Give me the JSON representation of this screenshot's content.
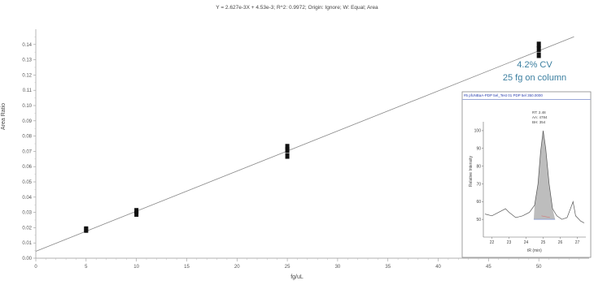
{
  "chart_data": {
    "type": "scatter",
    "title": "Y = 2.627e-3X + 4.53e-3; R^2: 0.9972; Origin: Ignore; W: Equal; Area",
    "xlabel": "fg/uL",
    "ylabel": "Area Ratio",
    "xlim": [
      0,
      55
    ],
    "ylim": [
      0,
      0.15
    ],
    "x_ticks": [
      "0",
      "5",
      "10",
      "15",
      "20",
      "25",
      "30",
      "35",
      "40",
      "45",
      "50"
    ],
    "y_ticks": [
      "0.00",
      "0.01",
      "0.02",
      "0.03",
      "0.04",
      "0.05",
      "0.06",
      "0.07",
      "0.08",
      "0.09",
      "0.10",
      "0.11",
      "0.12",
      "0.13",
      "0.14"
    ],
    "fit": {
      "slope": 0.002627,
      "intercept": 0.00453
    },
    "points": [
      {
        "x": 5,
        "y": 0.0185
      },
      {
        "x": 5,
        "y": 0.019
      },
      {
        "x": 10,
        "y": 0.029
      },
      {
        "x": 10,
        "y": 0.031
      },
      {
        "x": 25,
        "y": 0.067
      },
      {
        "x": 25,
        "y": 0.071
      },
      {
        "x": 25,
        "y": 0.073
      },
      {
        "x": 50,
        "y": 0.133
      },
      {
        "x": 50,
        "y": 0.137
      },
      {
        "x": 50,
        "y": 0.14
      }
    ],
    "annotation": {
      "line1": "4.2% CV",
      "line2": "25 fg on column"
    },
    "inset": {
      "header": "#5 pfoNBaA-PDP 5el_Test 01 PDP 5el 350.0000",
      "ylabel": "Relative Intensity",
      "xlabel": "tR (min)",
      "x_ticks": [
        "22",
        "23",
        "24",
        "25",
        "26",
        "27"
      ],
      "y_ticks": [
        "50",
        "60",
        "70",
        "80",
        "90",
        "100"
      ],
      "peak_labels": [
        "RT: 2.48",
        "AA: 4784",
        "BH: 354"
      ]
    }
  }
}
